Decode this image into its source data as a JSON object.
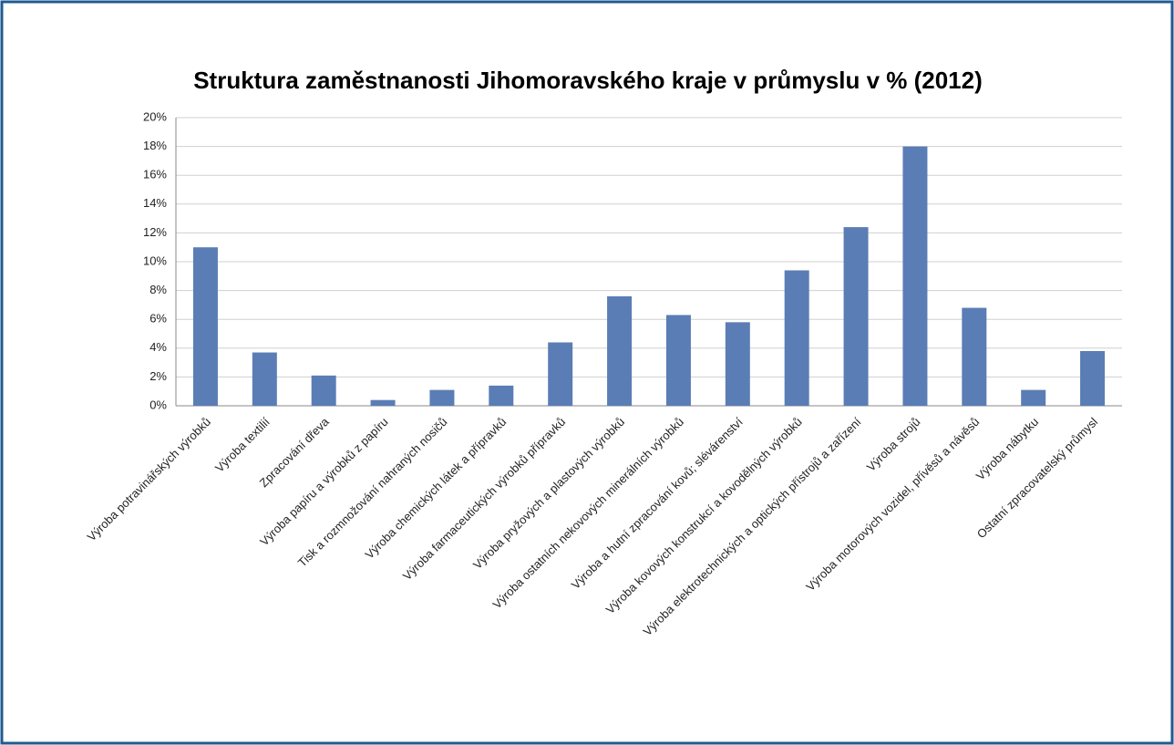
{
  "chart_data": {
    "type": "bar",
    "title": "Struktura zaměstnanosti Jihomoravského kraje v průmyslu v % (2012)",
    "categories": [
      "Výroba potravinářských výrobků",
      "Výroba textilií",
      "Zpracování dřeva",
      "Výroba papíru a výrobků z papíru",
      "Tisk a rozmnožování nahraných nosičů",
      "Výroba chemických látek a přípravků",
      "Výroba farmaceutických výrobků přípravků",
      "Výroba pryžových a plastových výrobků",
      "Výroba ostatních nekovových minerálních výrobků",
      "Výroba a hutní zpracování kovů; slévárenství",
      "Výroba kovových konstrukcí a kovodělných výrobků",
      "Výroba elektrotechnických a optických přístrojů a zařízení",
      "Výroba strojů",
      "Výroba motorových vozidel, přívěsů a návěsů",
      "Výroba nábytku",
      "Ostatní zpracovatelský průmysl"
    ],
    "values": [
      11.0,
      3.7,
      2.1,
      0.4,
      1.1,
      1.4,
      4.4,
      7.6,
      6.3,
      5.8,
      9.4,
      12.4,
      18.0,
      6.8,
      1.1,
      3.8
    ],
    "color": "#5b7db5",
    "ylim": [
      0,
      20
    ],
    "yticks": [
      {
        "value": 0,
        "label": "0%"
      },
      {
        "value": 2,
        "label": "2%"
      },
      {
        "value": 4,
        "label": "4%"
      },
      {
        "value": 6,
        "label": "6%"
      },
      {
        "value": 8,
        "label": "8%"
      },
      {
        "value": 10,
        "label": "10%"
      },
      {
        "value": 12,
        "label": "12%"
      },
      {
        "value": 14,
        "label": "14%"
      },
      {
        "value": 16,
        "label": "16%"
      },
      {
        "value": 18,
        "label": "18%"
      },
      {
        "value": 20,
        "label": "20%"
      }
    ],
    "grid": true
  }
}
